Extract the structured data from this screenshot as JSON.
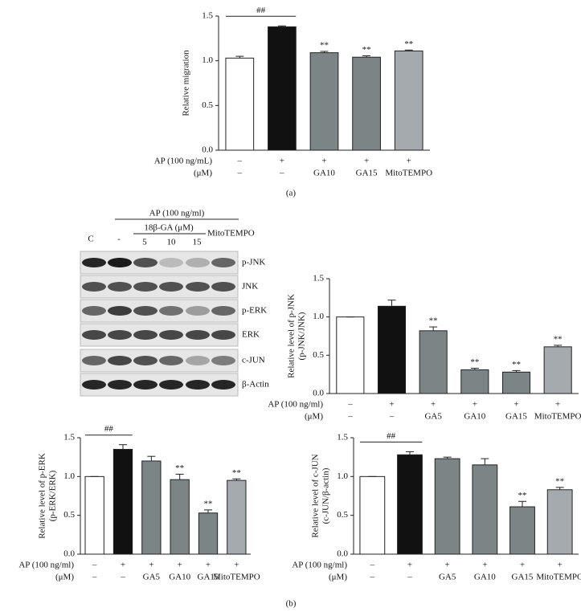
{
  "chart_data": [
    {
      "type": "bar",
      "ylabel": [
        "Relative migration"
      ],
      "values": [
        1.03,
        1.38,
        1.09,
        1.04,
        1.11
      ],
      "errors": [
        0.02,
        0.01,
        0.015,
        0.015,
        0.01
      ],
      "colors": [
        "#ffffff",
        "#111111",
        "#7c8585",
        "#7c8585",
        "#a4aaae"
      ],
      "sig_labels": [
        null,
        null,
        "**",
        "**",
        "**"
      ],
      "bracket_label": "##",
      "ylim": [
        0,
        1.5
      ],
      "yticks": [
        {
          "value": 0,
          "label": "0.0"
        },
        0.5,
        {
          "value": 1,
          "label": "1.0"
        },
        1.5
      ],
      "rows": [
        {
          "label": "AP (100 ng/mL)",
          "cells": [
            "–",
            "+",
            "+",
            "+",
            "+"
          ]
        },
        {
          "label": "(μM)",
          "cells": [
            "–",
            "–",
            "GA10",
            "GA15",
            "MitoTEMPO"
          ]
        }
      ]
    },
    {
      "type": "bar",
      "ylabel": [
        "Relative level of p-JNK",
        "(p-JNK/JNK)"
      ],
      "values": [
        1.0,
        1.14,
        0.82,
        0.31,
        0.28,
        0.61
      ],
      "errors": [
        0,
        0.08,
        0.05,
        0.02,
        0.02,
        0.02
      ],
      "colors": [
        "#ffffff",
        "#111111",
        "#7c8585",
        "#7c8585",
        "#7c8585",
        "#a4aaae"
      ],
      "sig_labels": [
        null,
        null,
        "**",
        "**",
        "**",
        "**"
      ],
      "ylim": [
        0,
        1.5
      ],
      "yticks": [
        {
          "value": 0,
          "label": "0.0"
        },
        0.5,
        {
          "value": 1,
          "label": "1.0"
        },
        1.5
      ],
      "rows": [
        {
          "label": "AP (100 ng/ml)",
          "cells": [
            "–",
            "+",
            "+",
            "+",
            "+",
            "+"
          ]
        },
        {
          "label": "(μM)",
          "cells": [
            "–",
            "–",
            "GA5",
            "GA10",
            "GA15",
            "MitoTEMPO"
          ]
        }
      ]
    },
    {
      "type": "bar",
      "ylabel": [
        "Relative level of p-ERK",
        "(p-ERK/ERK)"
      ],
      "values": [
        1.0,
        1.35,
        1.2,
        0.96,
        0.53,
        0.95
      ],
      "errors": [
        0,
        0.06,
        0.06,
        0.07,
        0.04,
        0.02
      ],
      "colors": [
        "#ffffff",
        "#111111",
        "#7c8585",
        "#7c8585",
        "#7c8585",
        "#a4aaae"
      ],
      "sig_labels": [
        null,
        null,
        null,
        "**",
        "**",
        "**"
      ],
      "bracket_label": "##",
      "ylim": [
        0,
        1.5
      ],
      "yticks": [
        {
          "value": 0,
          "label": "0.0"
        },
        0.5,
        {
          "value": 1,
          "label": "1.0"
        },
        1.5
      ],
      "rows": [
        {
          "label": "AP (100 ng/ml)",
          "cells": [
            "–",
            "+",
            "+",
            "+",
            "+",
            "+"
          ]
        },
        {
          "label": "(μM)",
          "cells": [
            "–",
            "–",
            "GA5",
            "GA10",
            "GA15",
            "MitoTEMPO"
          ]
        }
      ]
    },
    {
      "type": "bar",
      "ylabel": [
        "Relative level of c-JUN",
        "(c-JUN/β-actin)"
      ],
      "values": [
        1.0,
        1.28,
        1.23,
        1.15,
        0.61,
        0.83
      ],
      "errors": [
        0,
        0.04,
        0.02,
        0.08,
        0.07,
        0.03
      ],
      "colors": [
        "#ffffff",
        "#111111",
        "#7c8585",
        "#7c8585",
        "#7c8585",
        "#a4aaae"
      ],
      "sig_labels": [
        null,
        null,
        null,
        null,
        "**",
        "**"
      ],
      "bracket_label": "##",
      "ylim": [
        0,
        1.5
      ],
      "yticks": [
        {
          "value": 0,
          "label": "0.0"
        },
        0.5,
        {
          "value": 1,
          "label": "1.0"
        },
        1.5
      ],
      "rows": [
        {
          "label": "AP (100 ng/ml)",
          "cells": [
            "–",
            "+",
            "+",
            "+",
            "+",
            "+"
          ]
        },
        {
          "label": "(μM)",
          "cells": [
            "–",
            "–",
            "GA5",
            "GA10",
            "GA15",
            "MitoTEMPO"
          ]
        }
      ]
    }
  ],
  "blot": {
    "treatment": "AP (100 ng/ml)",
    "drug": "18β-GA (μM)",
    "lanes": [
      "C",
      "-",
      "5",
      "10",
      "15",
      "MitoTEMPO"
    ],
    "rows": [
      "p-JNK",
      "JNK",
      "p-ERK",
      "ERK",
      "c-JUN",
      "β-Actin"
    ]
  },
  "panel_labels": [
    "(a)",
    "(b)"
  ]
}
